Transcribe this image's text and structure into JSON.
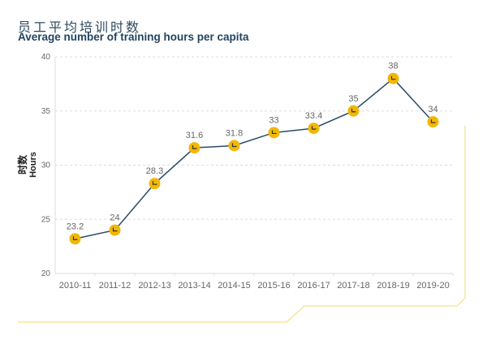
{
  "chart_data": {
    "type": "line",
    "title": "员工平均培训时数",
    "subtitle": "Average number of training hours per capita",
    "ylabel_cn": "时数",
    "ylabel": "Hours",
    "xlabel": "",
    "categories": [
      "2010-11",
      "2011-12",
      "2012-13",
      "2013-14",
      "2014-15",
      "2015-16",
      "2016-17",
      "2017-18",
      "2018-19",
      "2019-20"
    ],
    "values": [
      23.2,
      24,
      28.3,
      31.6,
      31.8,
      33,
      33.4,
      35,
      38,
      34
    ],
    "labels": [
      "23.2",
      "24",
      "28.3",
      "31.6",
      "31.8",
      "33",
      "33.4",
      "35",
      "38",
      "34"
    ],
    "ylim": [
      20,
      40
    ],
    "yticks": [
      20,
      25,
      30,
      35,
      40
    ],
    "grid": true,
    "marker_icon": "clock-icon",
    "colors": {
      "line": "#2b4a66",
      "marker": "#f2b705",
      "frame": "#f5e08a",
      "title": "#22445f"
    }
  }
}
